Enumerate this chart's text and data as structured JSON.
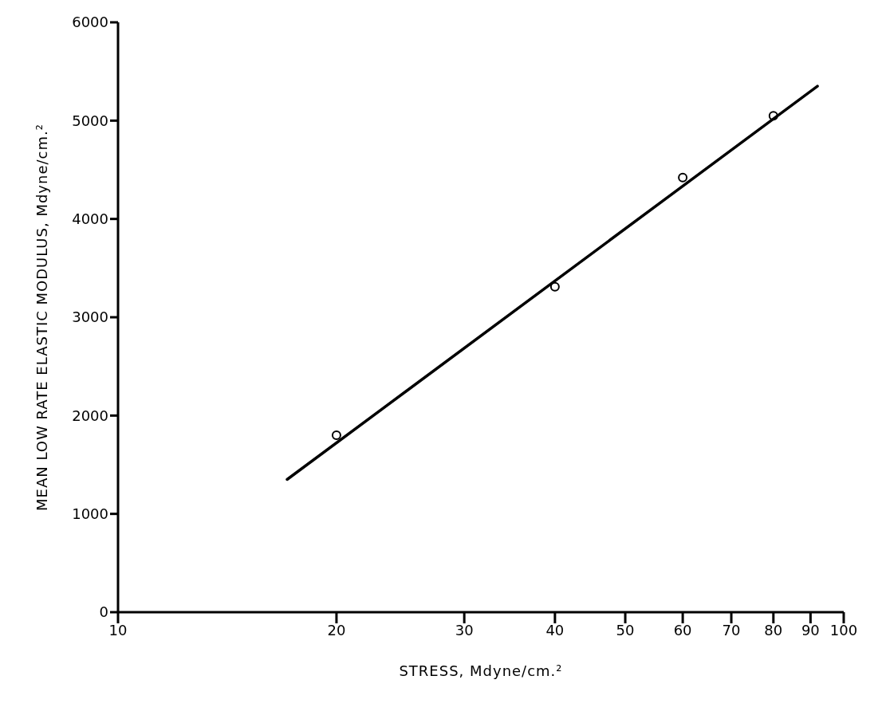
{
  "chart_data": {
    "type": "scatter",
    "xlabel": "STRESS, Mdyne/cm.²",
    "ylabel": "MEAN LOW RATE ELASTIC MODULUS, Mdyne/cm.²",
    "log": "x",
    "xlim": [
      10,
      100
    ],
    "xticks": [
      10,
      20,
      30,
      40,
      50,
      60,
      70,
      80,
      90,
      100
    ],
    "ylim": [
      0,
      6000
    ],
    "yticks": [
      0,
      1000,
      2000,
      3000,
      4000,
      5000,
      6000
    ],
    "grid": false,
    "series": [
      {
        "color": "#000000",
        "marker": "circle",
        "x": [
          20,
          40,
          60,
          80
        ],
        "values": [
          1800,
          3310,
          4420,
          5050
        ]
      },
      {
        "type": "line",
        "color": "#000000",
        "x": [
          17.1,
          92
        ],
        "values": [
          1350,
          5350
        ],
        "line_style": "solid"
      }
    ]
  }
}
